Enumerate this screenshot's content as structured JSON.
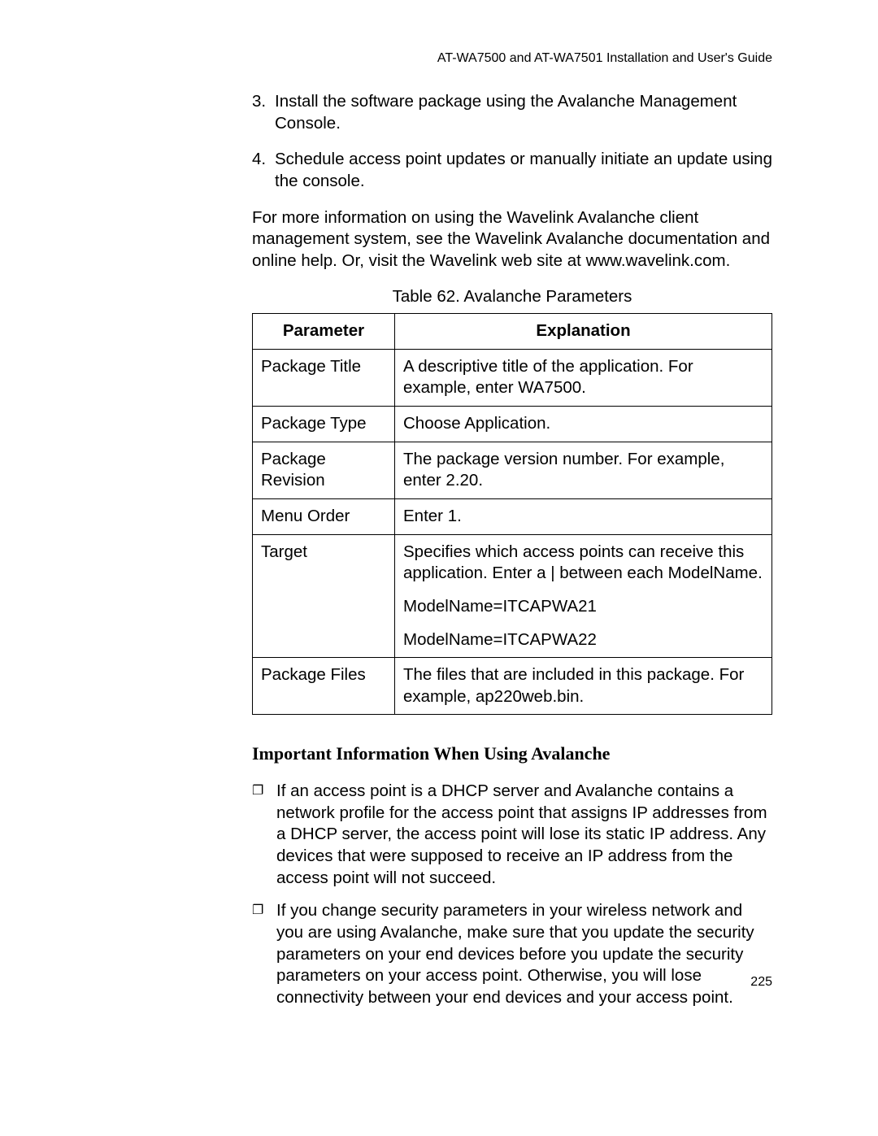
{
  "header": {
    "running_title": "AT-WA7500 and AT-WA7501 Installation and User's Guide"
  },
  "ordered": {
    "items": [
      {
        "num": "3.",
        "text": "Install the software package using the Avalanche Management Console."
      },
      {
        "num": "4.",
        "text": "Schedule access point updates or manually initiate an update using the console."
      }
    ]
  },
  "para1": "For more information on using the Wavelink Avalanche client management system, see the Wavelink Avalanche documentation and online help. Or, visit the Wavelink web site at www.wavelink.com.",
  "table": {
    "caption": "Table 62. Avalanche Parameters",
    "columns": [
      "Parameter",
      "Explanation"
    ],
    "rows": [
      {
        "param": "Package Title",
        "expl": "A descriptive title of the application. For example, enter WA7500."
      },
      {
        "param": "Package Type",
        "expl": "Choose Application."
      },
      {
        "param": "Package Revision",
        "expl": "The package version number. For example, enter 2.20."
      },
      {
        "param": "Menu Order",
        "expl": "Enter 1."
      },
      {
        "param": "Target",
        "expl": "Specifies which access points can receive this application. Enter a | between each ModelName.",
        "extra1": "ModelName=ITCAPWA21",
        "extra2": "ModelName=ITCAPWA22"
      },
      {
        "param": "Package Files",
        "expl": "The files that are included in this package. For example, ap220web.bin."
      }
    ]
  },
  "section_heading": "Important Information When Using Avalanche",
  "bullets": {
    "items": [
      "If an access point is a DHCP server and Avalanche contains a network profile for the access point that assigns IP addresses from a DHCP server, the access point will lose its static IP address. Any devices that were supposed to receive an IP address from the access point will not succeed.",
      "If you change security parameters in your wireless network and you are using Avalanche, make sure that you update the security parameters on your end devices before you update the security parameters on your access point. Otherwise, you will lose connectivity between your end devices and your access point."
    ]
  },
  "page_number": "225"
}
